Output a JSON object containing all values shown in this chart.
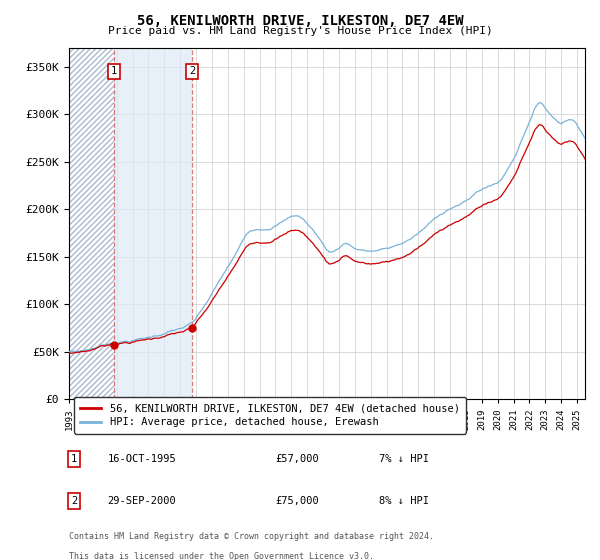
{
  "title": "56, KENILWORTH DRIVE, ILKESTON, DE7 4EW",
  "subtitle": "Price paid vs. HM Land Registry's House Price Index (HPI)",
  "legend_line1": "56, KENILWORTH DRIVE, ILKESTON, DE7 4EW (detached house)",
  "legend_line2": "HPI: Average price, detached house, Erewash",
  "sale1_date": "16-OCT-1995",
  "sale1_price": 57000,
  "sale1_label": "7% ↓ HPI",
  "sale2_date": "29-SEP-2000",
  "sale2_price": 75000,
  "sale2_label": "8% ↓ HPI",
  "footer1": "Contains HM Land Registry data © Crown copyright and database right 2024.",
  "footer2": "This data is licensed under the Open Government Licence v3.0.",
  "hpi_line_color": "#7ab3d9",
  "price_line_color": "#cc0000",
  "sale_marker_color": "#cc0000",
  "dashed_line_color": "#cc6666",
  "ylim": [
    0,
    370000
  ],
  "yticks": [
    0,
    50000,
    100000,
    150000,
    200000,
    250000,
    300000,
    350000
  ],
  "background_color": "#ffffff",
  "grid_color": "#cccccc",
  "hatch_region_start": 1993.0,
  "hatch_region_end": 1995.83,
  "shade_region_start": 1995.83,
  "shade_region_end": 2000.75,
  "sale1_x": 1995.83,
  "sale2_x": 2000.75,
  "xmin": 1993.0,
  "xmax": 2025.5
}
